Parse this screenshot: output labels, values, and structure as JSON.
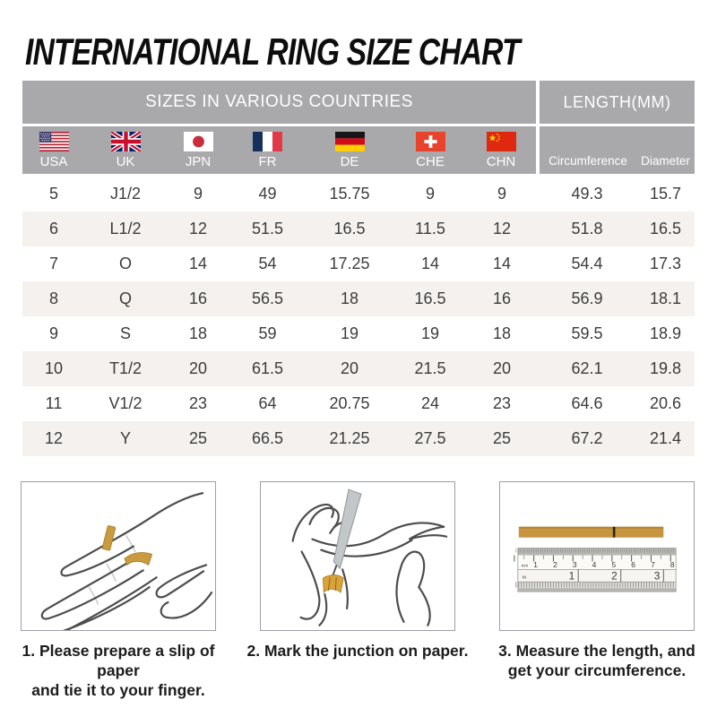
{
  "title": "INTERNATIONAL RING SIZE CHART",
  "table": {
    "group_headers": {
      "sizes": "SIZES IN VARIOUS COUNTRIES",
      "length": "LENGTH(MM)"
    },
    "columns": [
      {
        "code": "USA",
        "flag": "usa-flag"
      },
      {
        "code": "UK",
        "flag": "uk-flag"
      },
      {
        "code": "JPN",
        "flag": "japan-flag"
      },
      {
        "code": "FR",
        "flag": "france-flag"
      },
      {
        "code": "DE",
        "flag": "germany-flag"
      },
      {
        "code": "CHE",
        "flag": "switzerland-flag"
      },
      {
        "code": "CHN",
        "flag": "china-flag"
      }
    ],
    "length_columns": [
      "Circumference",
      "Diameter"
    ],
    "rows": [
      [
        "5",
        "J1/2",
        "9",
        "49",
        "15.75",
        "9",
        "9",
        "49.3",
        "15.7"
      ],
      [
        "6",
        "L1/2",
        "12",
        "51.5",
        "16.5",
        "11.5",
        "12",
        "51.8",
        "16.5"
      ],
      [
        "7",
        "O",
        "14",
        "54",
        "17.25",
        "14",
        "14",
        "54.4",
        "17.3"
      ],
      [
        "8",
        "Q",
        "16",
        "56.5",
        "18",
        "16.5",
        "16",
        "56.9",
        "18.1"
      ],
      [
        "9",
        "S",
        "18",
        "59",
        "19",
        "19",
        "18",
        "59.5",
        "18.9"
      ],
      [
        "10",
        "T1/2",
        "20",
        "61.5",
        "20",
        "21.5",
        "20",
        "62.1",
        "19.8"
      ],
      [
        "11",
        "V1/2",
        "23",
        "64",
        "20.75",
        "24",
        "23",
        "64.6",
        "20.6"
      ],
      [
        "12",
        "Y",
        "25",
        "66.5",
        "21.25",
        "27.5",
        "25",
        "67.2",
        "21.4"
      ]
    ]
  },
  "steps": [
    {
      "lines": [
        "1. Please prepare a slip of paper",
        "and tie it to your finger."
      ]
    },
    {
      "lines": [
        "2. Mark the junction on paper."
      ]
    },
    {
      "lines": [
        "3. Measure the length, and",
        "get your circumference."
      ]
    }
  ],
  "ruler": {
    "mm_numbers": [
      "1",
      "2",
      "3",
      "4",
      "5",
      "6",
      "7",
      "8"
    ],
    "inch_numbers": [
      "1",
      "2",
      "3"
    ],
    "unit_top": "mm",
    "unit_bottom": "M"
  },
  "colors": {
    "header_gray": "#a9a9ab",
    "row_alt": "#f4f1ee",
    "data_text": "#3c3c3c",
    "paper_gold": "#c6953e",
    "title_black": "#0d0d0d"
  }
}
